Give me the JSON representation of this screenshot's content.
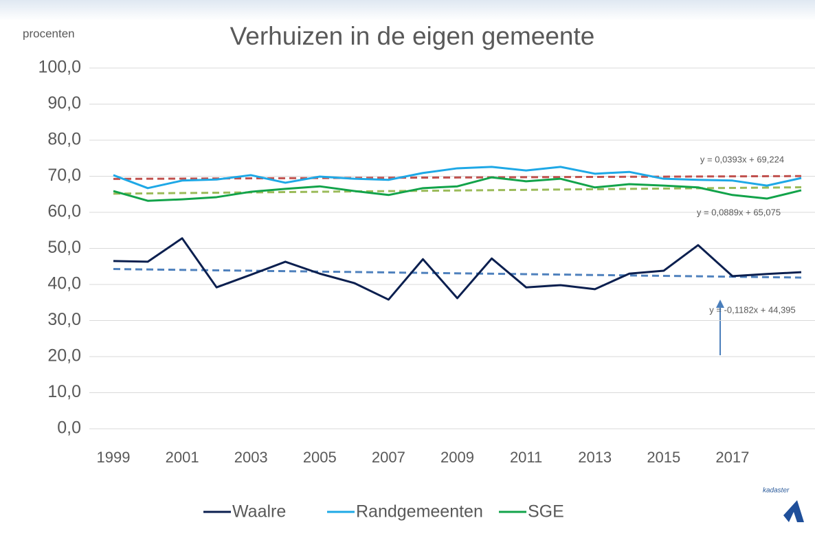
{
  "chart_data": {
    "type": "line",
    "title": "Verhuizen in de eigen gemeente",
    "y_label": "procenten",
    "x": [
      1999,
      2000,
      2001,
      2002,
      2003,
      2004,
      2005,
      2006,
      2007,
      2008,
      2009,
      2010,
      2011,
      2012,
      2013,
      2014,
      2015,
      2016,
      2017,
      2018,
      2019
    ],
    "xlim": [
      1999,
      2019
    ],
    "xticks": [
      1999,
      2001,
      2003,
      2005,
      2007,
      2009,
      2011,
      2013,
      2015,
      2017
    ],
    "ylim": [
      0,
      100
    ],
    "yticks": [
      {
        "value": 0,
        "label": "0,0"
      },
      {
        "value": 10,
        "label": "10,0"
      },
      {
        "value": 20,
        "label": "20,0"
      },
      {
        "value": 30,
        "label": "30,0"
      },
      {
        "value": 40,
        "label": "40,0"
      },
      {
        "value": 50,
        "label": "50,0"
      },
      {
        "value": 60,
        "label": "60,0"
      },
      {
        "value": 70,
        "label": "70,0"
      },
      {
        "value": 80,
        "label": "80,0"
      },
      {
        "value": 90,
        "label": "90,0"
      },
      {
        "value": 100,
        "label": "100,0"
      }
    ],
    "grid": true,
    "legend": "bottom",
    "series": [
      {
        "name": "Waalre",
        "color": "#0b1f4f",
        "values": [
          46.5,
          46.3,
          52.8,
          39.2,
          42.7,
          46.3,
          43.0,
          40.4,
          35.8,
          47.0,
          36.2,
          47.2,
          39.2,
          39.8,
          38.7,
          43.0,
          43.8,
          50.9,
          42.3,
          42.9,
          43.4
        ]
      },
      {
        "name": "Randgemeenten",
        "color": "#1ea8e6",
        "values": [
          70.3,
          66.7,
          68.8,
          69.1,
          70.3,
          68.2,
          69.9,
          69.3,
          69.0,
          70.9,
          72.2,
          72.6,
          71.6,
          72.6,
          70.7,
          71.2,
          69.3,
          69.0,
          68.8,
          67.4,
          69.5
        ]
      },
      {
        "name": "SGE",
        "color": "#12a34a",
        "values": [
          65.9,
          63.2,
          63.6,
          64.2,
          65.7,
          66.5,
          67.2,
          65.9,
          64.8,
          66.7,
          67.2,
          69.7,
          68.6,
          69.3,
          66.9,
          67.8,
          67.4,
          66.9,
          64.8,
          63.8,
          66.1
        ]
      }
    ],
    "trendlines": [
      {
        "label": "y = 0,0393x + 69,224",
        "slope": 0.0393,
        "intercept": 69.224,
        "color": "#c0504d"
      },
      {
        "label": "y = 0,0889x + 65,075",
        "slope": 0.0889,
        "intercept": 65.075,
        "color": "#9bbb59"
      },
      {
        "label": "y = -0,1182x + 44,395",
        "slope": -0.1182,
        "intercept": 44.395,
        "color": "#4f81bd"
      }
    ],
    "logo_text": "kadaster"
  }
}
